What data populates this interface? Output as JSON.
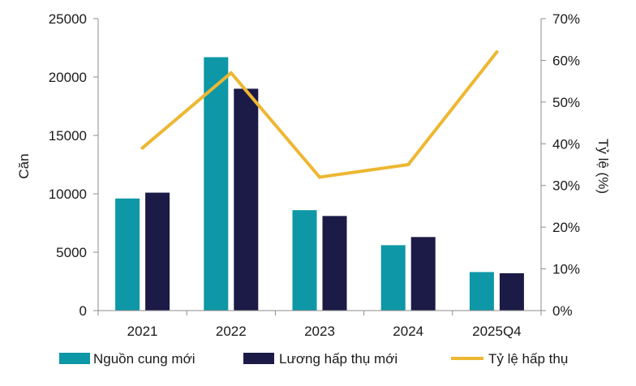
{
  "chart_data": {
    "type": "bar",
    "categories": [
      "2021",
      "2022",
      "2023",
      "2024",
      "2025Q4"
    ],
    "series": [
      {
        "name": "Nguồn cung mới",
        "type": "bar",
        "axis": "left",
        "color": "#0e97a6",
        "values": [
          9600,
          21700,
          8600,
          5600,
          3300
        ]
      },
      {
        "name": "Lương hấp thụ mới",
        "type": "bar",
        "axis": "left",
        "color": "#1c1a46",
        "values": [
          10100,
          19000,
          8100,
          6300,
          3200
        ]
      },
      {
        "name": "Tỷ lệ hấp thụ",
        "type": "line",
        "axis": "right",
        "color": "#edb732",
        "values": [
          39,
          57,
          32,
          35,
          62
        ]
      }
    ],
    "ylabel": "Căn",
    "y2label": "Tỷ lệ (%)",
    "ylim": [
      0,
      25000
    ],
    "yticks": [
      "0",
      "5000",
      "10000",
      "15000",
      "20000",
      "25000"
    ],
    "y2lim": [
      0,
      70
    ],
    "y2ticks": [
      "0%",
      "10%",
      "20%",
      "30%",
      "40%",
      "50%",
      "60%",
      "70%"
    ],
    "grid": false,
    "legend_position": "bottom"
  }
}
